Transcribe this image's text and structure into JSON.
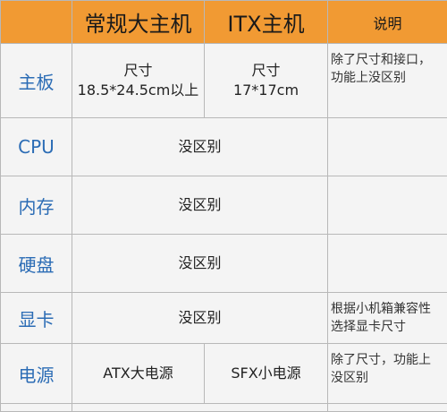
{
  "header": {
    "col_main": "常规大主机",
    "col_itx": "ITX主机",
    "col_note": "说明"
  },
  "rows": {
    "board": {
      "label": "主板",
      "main_line1": "尺寸",
      "main_line2": "18.5*24.5cm以上",
      "itx_line1": "尺寸",
      "itx_line2": "17*17cm",
      "note_line1": "除了尺寸和接口，",
      "note_line2": "功能上没区别"
    },
    "cpu": {
      "label": "CPU",
      "value": "没区别",
      "note": ""
    },
    "memory": {
      "label": "内存",
      "value": "没区别",
      "note": ""
    },
    "disk": {
      "label": "硬盘",
      "value": "没区别",
      "note": ""
    },
    "gpu": {
      "label": "显卡",
      "value": "没区别",
      "note_line1": "根据小机箱兼容性",
      "note_line2": "选择显卡尺寸"
    },
    "psu": {
      "label": "电源",
      "main": "ATX大电源",
      "itx": "SFX小电源",
      "note_line1": "除了尺寸，功能上",
      "note_line2": "没区别"
    }
  },
  "colors": {
    "header_bg": "#f19a33",
    "label_text": "#2b6cb5",
    "cell_bg": "#f4f4f4",
    "border": "#b8b8b8"
  }
}
